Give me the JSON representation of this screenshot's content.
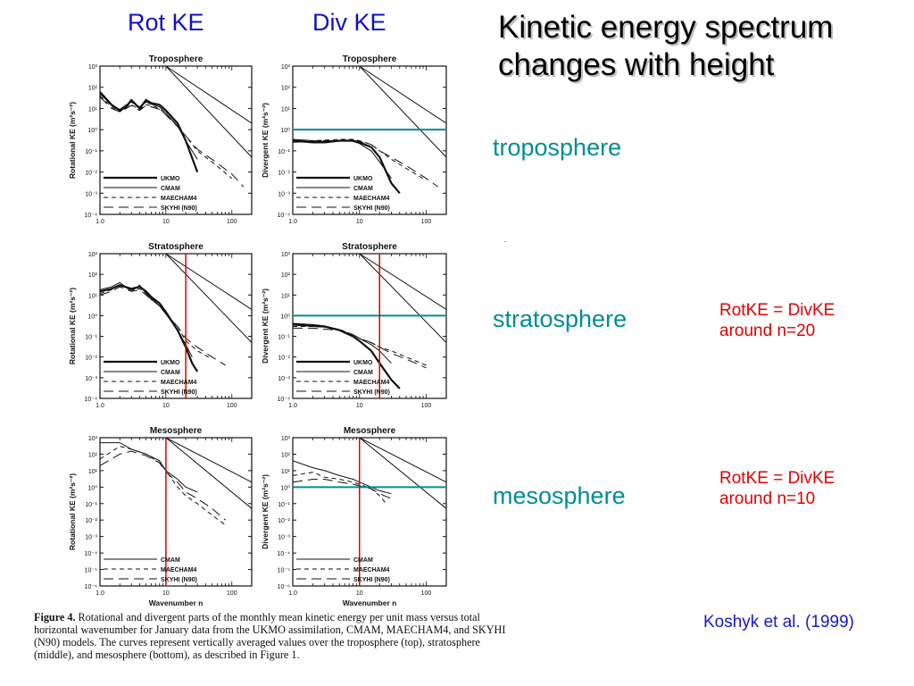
{
  "slide": {
    "title": "Kinetic energy spectrum changes with height",
    "col_rot": "Rot KE",
    "col_div": "Div KE",
    "labels": {
      "trop": "troposphere",
      "strat": "stratosphere",
      "meso": "mesosphere"
    },
    "note_strat": [
      "RotKE = DivKE",
      "around n=20"
    ],
    "note_meso": [
      "RotKE = DivKE",
      "around n=10"
    ],
    "citation": "Koshyk et al. (1999)",
    "caption": {
      "label": "Figure 4.",
      "text": "Rotational and divergent parts of the monthly mean kinetic energy per unit mass versus total horizontal wavenumber for January data from the UKMO assimilation, CMAM, MAECHAM4, and SKYHI (N90) models. The curves represent vertically averaged values over the troposphere (top), stratosphere (middle), and mesosphere (bottom), as described in Figure 1."
    },
    "colors": {
      "title_blue": "#1010c8",
      "teal": "#008c99",
      "red": "#e00000",
      "ink": "#111111"
    }
  },
  "chart_data": [
    {
      "type": "line",
      "title": "Troposphere",
      "xlabel": "",
      "ylabel": "Rotational KE (m²s⁻²)",
      "xscale": "log",
      "yscale": "log",
      "xlim": [
        1,
        200
      ],
      "ylim": [
        0.0001,
        1000
      ],
      "xticks": [
        "1.0",
        "10",
        "100"
      ],
      "yticks": [
        "10⁻⁴",
        "10⁻³",
        "10⁻²",
        "10⁻¹",
        "10⁰",
        "10¹",
        "10²",
        "10³"
      ],
      "legend": [
        "UKMO",
        "CMAM",
        "MAECHAM4",
        "SKYHI (N90)"
      ],
      "legend_position": "bottom-left",
      "reference_lines": [
        {
          "x": [
            10,
            200
          ],
          "y": [
            1000,
            2
          ]
        },
        {
          "x": [
            10,
            200
          ],
          "y": [
            1000,
            0.05
          ]
        }
      ],
      "series": [
        {
          "name": "UKMO",
          "style": "solid-thick",
          "x": [
            1,
            1.5,
            2,
            2.5,
            3,
            4,
            5,
            6,
            8,
            10,
            15,
            20,
            30
          ],
          "y": [
            60,
            15,
            8,
            12,
            25,
            10,
            25,
            18,
            15,
            8,
            2,
            0.3,
            0.01
          ]
        },
        {
          "name": "CMAM",
          "style": "solid",
          "x": [
            1,
            1.5,
            2,
            2.5,
            3,
            4,
            5,
            6,
            8,
            10,
            15,
            20,
            30
          ],
          "y": [
            50,
            14,
            9,
            15,
            20,
            12,
            20,
            16,
            12,
            6,
            1.5,
            0.3,
            0.04
          ]
        },
        {
          "name": "MAECHAM4",
          "style": "dashed",
          "x": [
            1,
            1.5,
            2,
            2.5,
            3,
            4,
            5,
            6,
            8,
            10,
            15,
            20,
            30,
            50,
            100
          ],
          "y": [
            40,
            12,
            7,
            12,
            15,
            9,
            15,
            14,
            10,
            5,
            1.5,
            0.5,
            0.1,
            0.03,
            0.005
          ]
        },
        {
          "name": "SKYHI (N90)",
          "style": "longdash",
          "x": [
            1,
            1.5,
            2,
            2.5,
            3,
            4,
            5,
            6,
            8,
            10,
            15,
            20,
            30,
            50,
            100,
            150
          ],
          "y": [
            35,
            10,
            7,
            10,
            14,
            8,
            14,
            12,
            9,
            5,
            1.4,
            0.5,
            0.12,
            0.04,
            0.008,
            0.002
          ]
        }
      ]
    },
    {
      "type": "line",
      "title": "Troposphere",
      "xlabel": "",
      "ylabel": "Divergent KE (m²s⁻²)",
      "xscale": "log",
      "yscale": "log",
      "xlim": [
        1,
        200
      ],
      "ylim": [
        0.0001,
        1000
      ],
      "xticks": [
        "1.0",
        "10",
        "100"
      ],
      "yticks": [
        "10⁻⁴",
        "10⁻³",
        "10⁻²",
        "10⁻¹",
        "10⁰",
        "10¹",
        "10²",
        "10³"
      ],
      "legend": [
        "UKMO",
        "CMAM",
        "MAECHAM4",
        "SKYHI (N90)"
      ],
      "legend_position": "bottom-left",
      "reference_lines": [
        {
          "x": [
            10,
            200
          ],
          "y": [
            1000,
            2
          ]
        },
        {
          "x": [
            10,
            200
          ],
          "y": [
            1000,
            0.05
          ]
        }
      ],
      "hline": 1,
      "series": [
        {
          "name": "UKMO",
          "style": "solid-thick",
          "x": [
            1,
            2,
            3,
            5,
            8,
            10,
            15,
            20,
            30,
            40
          ],
          "y": [
            0.3,
            0.25,
            0.25,
            0.3,
            0.3,
            0.25,
            0.15,
            0.05,
            0.003,
            0.001
          ]
        },
        {
          "name": "CMAM",
          "style": "solid",
          "x": [
            1,
            2,
            3,
            5,
            8,
            10,
            15,
            20,
            30
          ],
          "y": [
            0.35,
            0.3,
            0.28,
            0.3,
            0.28,
            0.22,
            0.1,
            0.03,
            0.005
          ]
        },
        {
          "name": "MAECHAM4",
          "style": "dashed",
          "x": [
            1,
            2,
            3,
            5,
            8,
            10,
            15,
            20,
            30,
            50,
            100
          ],
          "y": [
            0.3,
            0.3,
            0.32,
            0.35,
            0.35,
            0.3,
            0.2,
            0.1,
            0.04,
            0.015,
            0.004
          ]
        },
        {
          "name": "SKYHI (N90)",
          "style": "longdash",
          "x": [
            1,
            2,
            3,
            5,
            8,
            10,
            15,
            20,
            30,
            50,
            100,
            150
          ],
          "y": [
            0.25,
            0.28,
            0.3,
            0.3,
            0.3,
            0.28,
            0.2,
            0.1,
            0.05,
            0.02,
            0.005,
            0.002
          ]
        }
      ]
    },
    {
      "type": "line",
      "title": "Stratosphere",
      "xlabel": "",
      "ylabel": "Rotational KE (m²s⁻²)",
      "xscale": "log",
      "yscale": "log",
      "xlim": [
        1,
        200
      ],
      "ylim": [
        0.0001,
        1000
      ],
      "xticks": [
        "1.0",
        "10",
        "100"
      ],
      "yticks": [
        "10⁻⁴",
        "10⁻³",
        "10⁻²",
        "10⁻¹",
        "10⁰",
        "10¹",
        "10²",
        "10³"
      ],
      "legend": [
        "UKMO",
        "CMAM",
        "MAECHAM4",
        "SKYHI (N90)"
      ],
      "legend_position": "bottom-left",
      "reference_lines": [
        {
          "x": [
            10,
            200
          ],
          "y": [
            1000,
            2
          ]
        },
        {
          "x": [
            10,
            200
          ],
          "y": [
            1000,
            0.05
          ]
        }
      ],
      "vline": 20,
      "series": [
        {
          "name": "UKMO",
          "style": "solid-thick",
          "x": [
            1,
            1.5,
            2,
            3,
            4,
            5,
            6,
            8,
            10,
            15,
            20,
            25,
            30
          ],
          "y": [
            15,
            20,
            30,
            20,
            25,
            15,
            8,
            4,
            1.5,
            0.2,
            0.03,
            0.005,
            0.002
          ]
        },
        {
          "name": "CMAM",
          "style": "solid",
          "x": [
            1,
            1.5,
            2,
            3,
            4,
            5,
            6,
            8,
            10,
            15,
            20,
            25
          ],
          "y": [
            18,
            25,
            40,
            15,
            30,
            12,
            7,
            3,
            1.2,
            0.2,
            0.04,
            0.01
          ]
        },
        {
          "name": "MAECHAM4",
          "style": "dashed",
          "x": [
            1,
            1.5,
            2,
            3,
            4,
            5,
            6,
            8,
            10,
            15,
            20,
            30,
            50
          ],
          "y": [
            12,
            18,
            30,
            18,
            20,
            12,
            6,
            3,
            1.2,
            0.3,
            0.06,
            0.02,
            0.008
          ]
        },
        {
          "name": "SKYHI (N90)",
          "style": "longdash",
          "x": [
            1,
            1.5,
            2,
            3,
            4,
            5,
            6,
            8,
            10,
            15,
            20,
            30,
            50,
            80
          ],
          "y": [
            10,
            15,
            25,
            15,
            18,
            10,
            6,
            3,
            1.2,
            0.3,
            0.08,
            0.03,
            0.01,
            0.004
          ]
        }
      ]
    },
    {
      "type": "line",
      "title": "Stratosphere",
      "xlabel": "",
      "ylabel": "Divergent KE (m²s⁻²)",
      "xscale": "log",
      "yscale": "log",
      "xlim": [
        1,
        200
      ],
      "ylim": [
        0.0001,
        1000
      ],
      "xticks": [
        "1.0",
        "10",
        "100"
      ],
      "yticks": [
        "10⁻⁴",
        "10⁻³",
        "10⁻²",
        "10⁻¹",
        "10⁰",
        "10¹",
        "10²",
        "10³"
      ],
      "legend": [
        "UKMO",
        "CMAM",
        "MAECHAM4",
        "SKYHI (N90)"
      ],
      "legend_position": "bottom-left",
      "reference_lines": [
        {
          "x": [
            10,
            200
          ],
          "y": [
            1000,
            2
          ]
        },
        {
          "x": [
            10,
            200
          ],
          "y": [
            1000,
            0.05
          ]
        }
      ],
      "hline": 1,
      "vline": 20,
      "series": [
        {
          "name": "UKMO",
          "style": "solid-thick",
          "x": [
            1,
            2,
            3,
            5,
            8,
            10,
            15,
            20,
            30,
            40
          ],
          "y": [
            0.4,
            0.35,
            0.3,
            0.2,
            0.1,
            0.06,
            0.02,
            0.005,
            0.0008,
            0.0003
          ]
        },
        {
          "name": "CMAM",
          "style": "solid",
          "x": [
            1,
            2,
            3,
            5,
            8,
            10,
            15,
            20,
            30
          ],
          "y": [
            0.35,
            0.3,
            0.28,
            0.2,
            0.12,
            0.08,
            0.04,
            0.02,
            0.005
          ]
        },
        {
          "name": "MAECHAM4",
          "style": "dashed",
          "x": [
            1,
            2,
            3,
            5,
            8,
            10,
            15,
            20,
            30,
            50,
            100
          ],
          "y": [
            0.3,
            0.3,
            0.28,
            0.22,
            0.12,
            0.08,
            0.05,
            0.03,
            0.02,
            0.01,
            0.004
          ]
        },
        {
          "name": "SKYHI (N90)",
          "style": "longdash",
          "x": [
            1,
            2,
            3,
            5,
            8,
            10,
            15,
            20,
            30,
            50,
            100
          ],
          "y": [
            0.25,
            0.25,
            0.22,
            0.2,
            0.12,
            0.08,
            0.05,
            0.03,
            0.015,
            0.008,
            0.003
          ]
        }
      ]
    },
    {
      "type": "line",
      "title": "Mesosphere",
      "xlabel": "Wavenumber n",
      "ylabel": "Rotational KE (m²s⁻²)",
      "xscale": "log",
      "yscale": "log",
      "xlim": [
        1,
        200
      ],
      "ylim": [
        1e-06,
        1000
      ],
      "xticks": [
        "1.0",
        "10",
        "100"
      ],
      "yticks": [
        "10⁻⁶",
        "10⁻⁵",
        "10⁻⁴",
        "10⁻³",
        "10⁻²",
        "10⁻¹",
        "10⁰",
        "10¹",
        "10²",
        "10³"
      ],
      "legend": [
        "CMAM",
        "MAECHAM4",
        "SKYHI (N90)"
      ],
      "legend_position": "bottom-left",
      "reference_lines": [
        {
          "x": [
            10,
            200
          ],
          "y": [
            1000,
            2
          ]
        },
        {
          "x": [
            10,
            200
          ],
          "y": [
            1000,
            0.05
          ]
        }
      ],
      "vline": 10,
      "series": [
        {
          "name": "CMAM",
          "style": "solid",
          "x": [
            1,
            2,
            3,
            5,
            8,
            10,
            15,
            20,
            30
          ],
          "y": [
            500,
            500,
            200,
            100,
            40,
            10,
            3,
            1,
            0.5
          ]
        },
        {
          "name": "MAECHAM4",
          "style": "dashed",
          "x": [
            1,
            2,
            3,
            5,
            8,
            10,
            15,
            20,
            30,
            50,
            80
          ],
          "y": [
            50,
            300,
            200,
            100,
            30,
            10,
            1,
            0.3,
            0.1,
            0.02,
            0.005
          ]
        },
        {
          "name": "SKYHI (N90)",
          "style": "longdash",
          "x": [
            1,
            2,
            3,
            5,
            8,
            10,
            15,
            20,
            30,
            50,
            80
          ],
          "y": [
            20,
            100,
            150,
            80,
            30,
            8,
            2,
            0.5,
            0.2,
            0.05,
            0.01
          ]
        }
      ]
    },
    {
      "type": "line",
      "title": "Mesosphere",
      "xlabel": "Wavenumber n",
      "ylabel": "Divergent KE (m²s⁻²)",
      "xscale": "log",
      "yscale": "log",
      "xlim": [
        1,
        200
      ],
      "ylim": [
        1e-06,
        1000
      ],
      "xticks": [
        "1.0",
        "10",
        "100"
      ],
      "yticks": [
        "10⁻⁶",
        "10⁻⁵",
        "10⁻⁴",
        "10⁻³",
        "10⁻²",
        "10⁻¹",
        "10⁰",
        "10¹",
        "10²",
        "10³"
      ],
      "legend": [
        "CMAM",
        "MAECHAM4",
        "SKYHI (N90)"
      ],
      "legend_position": "bottom-left",
      "reference_lines": [
        {
          "x": [
            10,
            200
          ],
          "y": [
            1000,
            2
          ]
        },
        {
          "x": [
            10,
            200
          ],
          "y": [
            1000,
            0.05
          ]
        }
      ],
      "hline": 1,
      "vline": 10,
      "series": [
        {
          "name": "CMAM",
          "style": "solid",
          "x": [
            1,
            2,
            3,
            5,
            8,
            10,
            15,
            20,
            30
          ],
          "y": [
            40,
            15,
            10,
            5,
            3,
            2,
            1,
            0.6,
            0.4
          ]
        },
        {
          "name": "MAECHAM4",
          "style": "dashed",
          "x": [
            1,
            2,
            3,
            5,
            8,
            10,
            15,
            20,
            25
          ],
          "y": [
            5,
            8,
            4,
            3,
            2,
            1.5,
            0.8,
            0.3,
            0.1
          ]
        },
        {
          "name": "SKYHI (N90)",
          "style": "longdash",
          "x": [
            1,
            2,
            3,
            5,
            8,
            10,
            15,
            20,
            30
          ],
          "y": [
            2,
            3,
            3,
            2,
            1.5,
            1.2,
            0.8,
            0.4,
            0.2
          ]
        }
      ]
    }
  ]
}
